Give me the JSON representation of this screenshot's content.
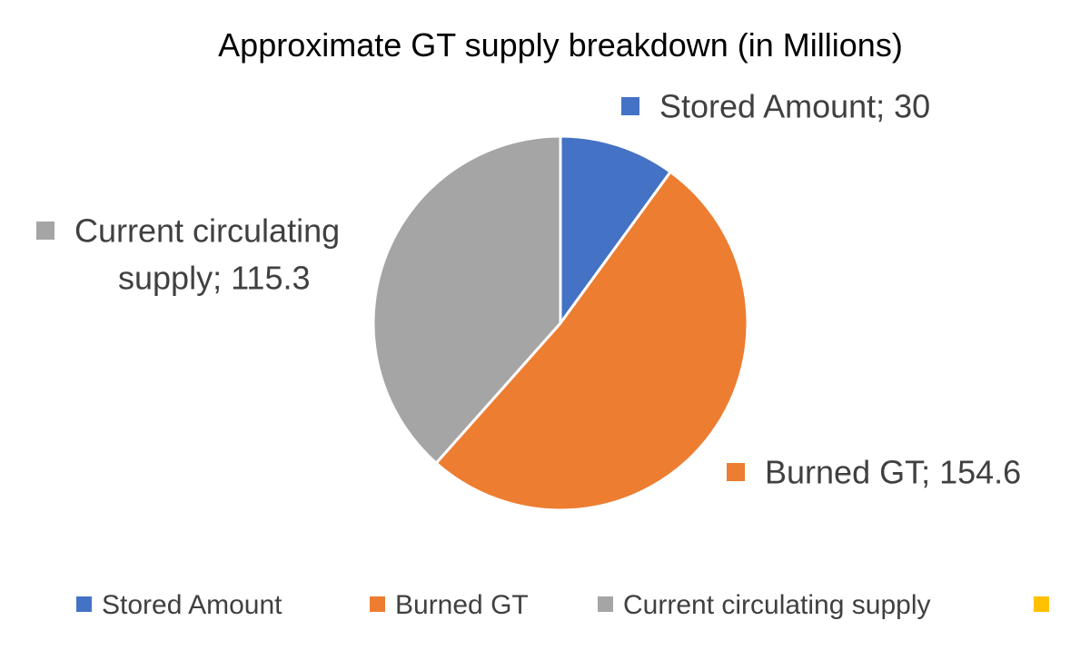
{
  "chart_data": {
    "type": "pie",
    "title": "Approximate GT supply breakdown (in Millions)",
    "slices": [
      {
        "name": "Stored Amount",
        "value": 30,
        "color": "#4472C4",
        "label_lines": [
          "Stored Amount; 30"
        ]
      },
      {
        "name": "Burned GT",
        "value": 154.6,
        "color": "#ED7D31",
        "label_lines": [
          "Burned GT; 154.6"
        ]
      },
      {
        "name": "Current circulating supply",
        "value": 115.3,
        "color": "#A5A5A5",
        "label_lines": [
          "Current circulating",
          "supply; 115.3"
        ]
      }
    ],
    "legend": {
      "placement": "bottom",
      "entries": [
        {
          "name": "Stored Amount",
          "color": "#4472C4"
        },
        {
          "name": "Burned GT",
          "color": "#ED7D31"
        },
        {
          "name": "Current circulating supply",
          "color": "#A5A5A5"
        },
        {
          "name": "",
          "color": "#FFC000"
        }
      ]
    },
    "text_color": "#404040",
    "title_color": "#000000",
    "start_angle_deg": 0,
    "direction": "clockwise"
  }
}
